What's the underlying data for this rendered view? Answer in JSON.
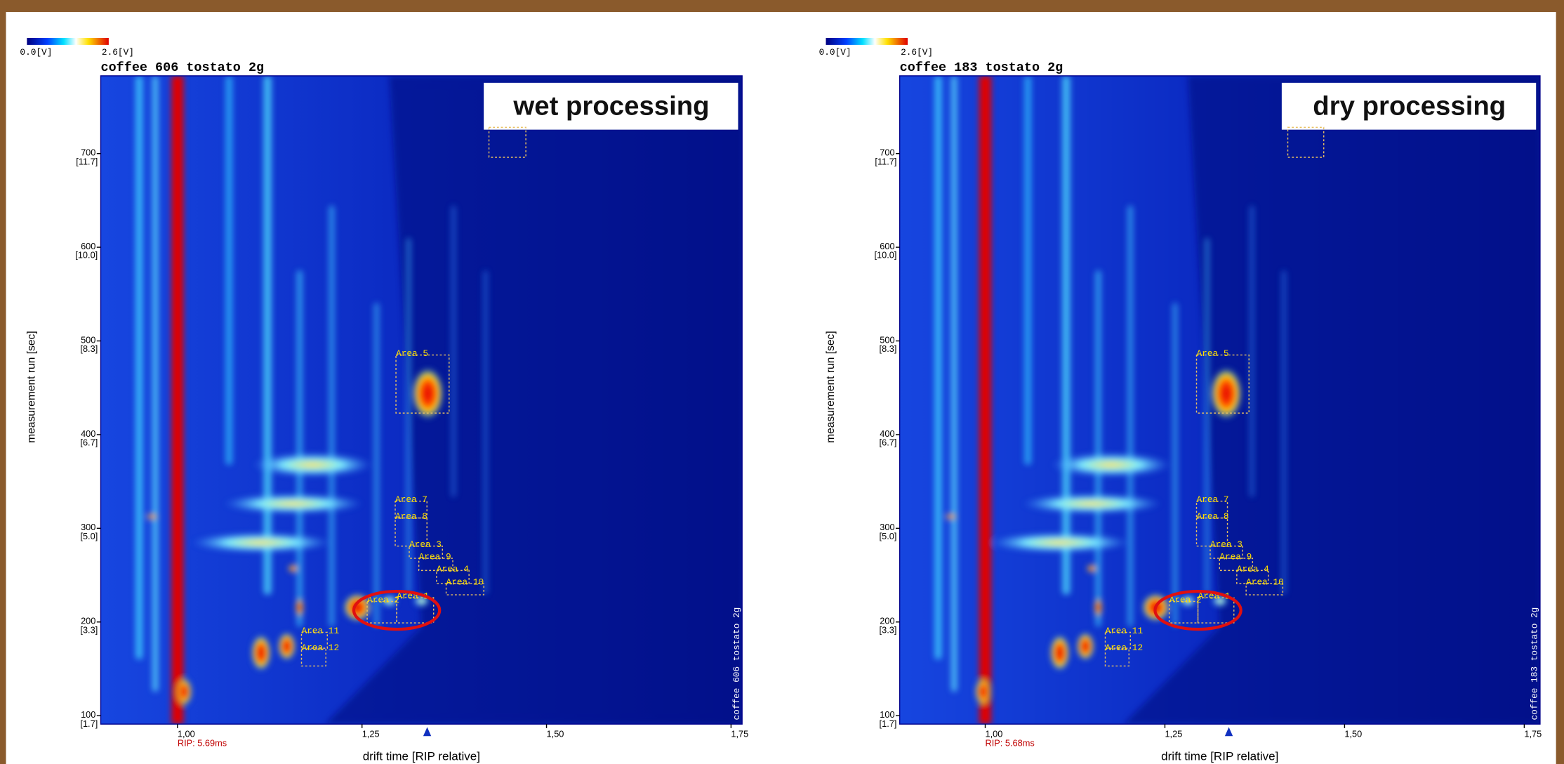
{
  "chart_data": [
    {
      "type": "heatmap",
      "title": "coffee 606 tostato 2g",
      "annotation": "wet processing",
      "side_label": "coffee 606 tostato 2g",
      "colorbar": [
        {
          "value": 0.0,
          "label": "0.0[V]"
        },
        {
          "value": 2.6,
          "label": "2.6[V]"
        }
      ],
      "xlabel": "drift time [RIP relative]",
      "ylabel": "measurement run [sec]",
      "rip_label": "RIP: 5.69ms",
      "xlim": [
        0.896,
        1.765
      ],
      "xticks": [
        {
          "value": 1.0,
          "label": "1,00"
        },
        {
          "value": 1.25,
          "label": "1,25"
        },
        {
          "value": 1.5,
          "label": "1,50"
        },
        {
          "value": 1.75,
          "label": "1,75"
        }
      ],
      "ylim": [
        91,
        783
      ],
      "yticks": [
        100,
        200,
        300,
        400,
        500,
        600,
        700
      ],
      "ytick_sublabels": [
        "[1.7]",
        "[3.3]",
        "[5.0]",
        "[6.7]",
        "[8.3]",
        "[10.0]",
        "[11.7]"
      ],
      "areas": [
        {
          "label": "Area 5",
          "x": [
            1.296,
            1.368
          ],
          "y": [
            423,
            485
          ]
        },
        {
          "label": "Area 1",
          "x": [
            1.297,
            1.347
          ],
          "y": [
            199,
            226
          ]
        },
        {
          "label": "Area 2",
          "x": [
            1.257,
            1.297
          ],
          "y": [
            199,
            222
          ]
        },
        {
          "label": "Area 7",
          "x": [
            1.295,
            1.338
          ],
          "y": [
            311,
            329
          ]
        },
        {
          "label": "Area 8",
          "x": [
            1.295,
            1.338
          ],
          "y": [
            281,
            311
          ]
        },
        {
          "label": "Area 3",
          "x": [
            1.314,
            1.359
          ],
          "y": [
            268,
            281
          ]
        },
        {
          "label": "Area 9",
          "x": [
            1.327,
            1.373
          ],
          "y": [
            255,
            268
          ]
        },
        {
          "label": "Area 4",
          "x": [
            1.351,
            1.395
          ],
          "y": [
            241,
            255
          ]
        },
        {
          "label": "Area 10",
          "x": [
            1.364,
            1.415
          ],
          "y": [
            229,
            241
          ]
        },
        {
          "label": "Area 11",
          "x": [
            1.168,
            1.203
          ],
          "y": [
            172,
            189
          ]
        },
        {
          "label": "Area 12",
          "x": [
            1.168,
            1.201
          ],
          "y": [
            153,
            171
          ]
        },
        {
          "x": [
            1.422,
            1.472
          ],
          "y": [
            696,
            728
          ]
        }
      ]
    },
    {
      "type": "heatmap",
      "title": "coffee 183 tostato 2g",
      "annotation": "dry processing",
      "side_label": "coffee 183 tostato 2g",
      "colorbar": [
        {
          "value": 0.0,
          "label": "0.0[V]"
        },
        {
          "value": 2.6,
          "label": "2.6[V]"
        }
      ],
      "xlabel": "drift time [RIP relative]",
      "ylabel": "measurement run [sec]",
      "rip_label": "RIP: 5.68ms",
      "xlim": [
        0.881,
        1.772
      ],
      "xticks": [
        {
          "value": 1.0,
          "label": "1,00"
        },
        {
          "value": 1.25,
          "label": "1,25"
        },
        {
          "value": 1.5,
          "label": "1,50"
        },
        {
          "value": 1.75,
          "label": "1,75"
        }
      ],
      "ylim": [
        91,
        783
      ],
      "yticks": [
        100,
        200,
        300,
        400,
        500,
        600,
        700
      ],
      "ytick_sublabels": [
        "[1.7]",
        "[3.3]",
        "[5.0]",
        "[6.7]",
        "[8.3]",
        "[10.0]",
        "[11.7]"
      ],
      "areas": [
        {
          "label": "Area 5",
          "x": [
            1.294,
            1.367
          ],
          "y": [
            423,
            485
          ]
        },
        {
          "label": "Area 1",
          "x": [
            1.296,
            1.346
          ],
          "y": [
            199,
            226
          ]
        },
        {
          "label": "Area 2",
          "x": [
            1.256,
            1.296
          ],
          "y": [
            199,
            222
          ]
        },
        {
          "label": "Area 7",
          "x": [
            1.294,
            1.337
          ],
          "y": [
            311,
            329
          ]
        },
        {
          "label": "Area 8",
          "x": [
            1.294,
            1.337
          ],
          "y": [
            281,
            311
          ]
        },
        {
          "label": "Area 3",
          "x": [
            1.313,
            1.358
          ],
          "y": [
            268,
            281
          ]
        },
        {
          "label": "Area 9",
          "x": [
            1.326,
            1.372
          ],
          "y": [
            255,
            268
          ]
        },
        {
          "label": "Area 4",
          "x": [
            1.35,
            1.394
          ],
          "y": [
            241,
            255
          ]
        },
        {
          "label": "Area 10",
          "x": [
            1.363,
            1.414
          ],
          "y": [
            229,
            241
          ]
        },
        {
          "label": "Area 11",
          "x": [
            1.167,
            1.202
          ],
          "y": [
            172,
            189
          ]
        },
        {
          "label": "Area 12",
          "x": [
            1.167,
            1.2
          ],
          "y": [
            153,
            171
          ]
        },
        {
          "x": [
            1.421,
            1.471
          ],
          "y": [
            696,
            728
          ]
        }
      ]
    }
  ]
}
